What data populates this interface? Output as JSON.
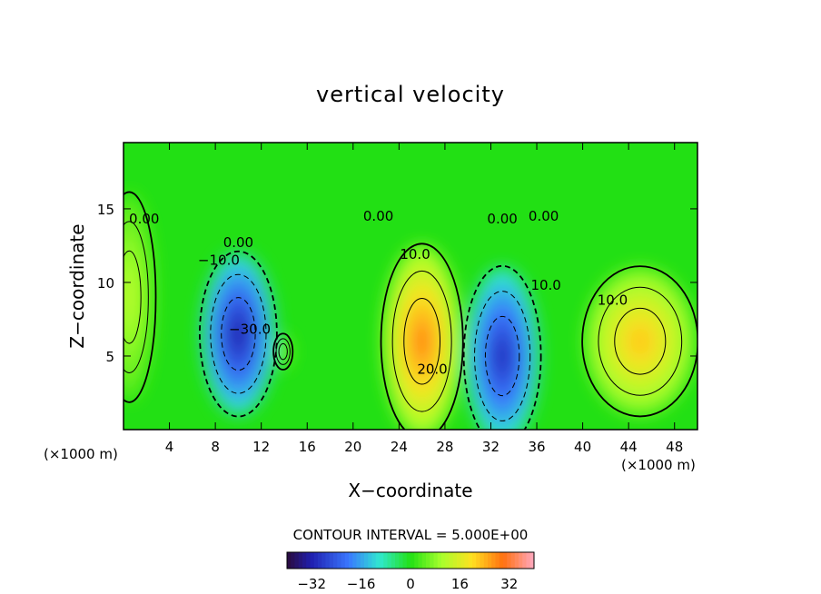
{
  "chart_data": {
    "type": "heatmap",
    "title": "vertical velocity",
    "xlabel": "X−coordinate",
    "ylabel": "Z−coordinate",
    "x_unit_left": "(×1000 m)",
    "x_unit_right": "(×1000 m)",
    "xlim": [
      0,
      50
    ],
    "ylim": [
      0,
      19.5
    ],
    "x_ticks": [
      4,
      8,
      12,
      16,
      20,
      24,
      28,
      32,
      36,
      40,
      44,
      48
    ],
    "x_tick_labels": [
      "4",
      "8",
      "12",
      "16",
      "20",
      "24",
      "28",
      "32",
      "36",
      "40",
      "44",
      "48"
    ],
    "y_ticks": [
      5,
      10,
      15
    ],
    "y_tick_labels": [
      "5",
      "10",
      "15"
    ],
    "contour_interval_text": "CONTOUR INTERVAL = 5.000E+00",
    "colorbar": {
      "range": [
        -40,
        40
      ],
      "ticks": [
        -32,
        -16,
        0,
        16,
        32
      ],
      "tick_labels": [
        "−32",
        "−16",
        "0",
        "16",
        "32"
      ]
    },
    "features": [
      {
        "kind": "updraft",
        "x": 0.5,
        "z": 9,
        "peak": 12
      },
      {
        "kind": "downdraft",
        "x": 10,
        "z": 6.5,
        "peak": -32
      },
      {
        "kind": "updraft",
        "x": 13.9,
        "z": 5.3,
        "peak": 8
      },
      {
        "kind": "updraft",
        "x": 26,
        "z": 6,
        "peak": 28
      },
      {
        "kind": "downdraft",
        "x": 33,
        "z": 5,
        "peak": -30
      },
      {
        "kind": "updraft",
        "x": 45,
        "z": 6,
        "peak": 22
      }
    ],
    "contour_labels": [
      {
        "text": "0.00",
        "x": 1.8,
        "z": 14
      },
      {
        "text": "−10.0",
        "x": 8.3,
        "z": 11.2
      },
      {
        "text": "0.00",
        "x": 10.0,
        "z": 12.4
      },
      {
        "text": "−30.0",
        "x": 11.0,
        "z": 6.5
      },
      {
        "text": "0.00",
        "x": 22.2,
        "z": 14.2
      },
      {
        "text": "10.0",
        "x": 25.4,
        "z": 11.6
      },
      {
        "text": "20.0",
        "x": 26.9,
        "z": 3.8
      },
      {
        "text": "0.00",
        "x": 33.0,
        "z": 14.0
      },
      {
        "text": "0.00",
        "x": 36.6,
        "z": 14.2
      },
      {
        "text": "10.0",
        "x": 36.8,
        "z": 9.5
      },
      {
        "text": "10.0",
        "x": 42.6,
        "z": 8.5
      }
    ],
    "grid": false,
    "legend": "none"
  }
}
